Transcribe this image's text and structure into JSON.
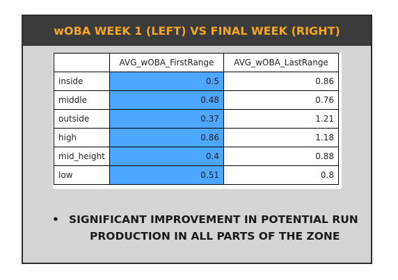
{
  "header": {
    "title": "wOBA WEEK 1 (LEFT) VS FINAL WEEK (RIGHT)"
  },
  "colors": {
    "header_bg": "#3b3b3b",
    "header_text": "#f5a623",
    "highlight": "#4da6ff",
    "panel_bg": "#d5d5d5"
  },
  "table": {
    "columns": [
      "",
      "AVG_wOBA_FirstRange",
      "AVG_wOBA_LastRange"
    ],
    "rows": [
      {
        "label": "inside",
        "first": "0.5",
        "last": "0.86"
      },
      {
        "label": "middle",
        "first": "0.48",
        "last": "0.76"
      },
      {
        "label": "outside",
        "first": "0.37",
        "last": "1.21"
      },
      {
        "label": "high",
        "first": "0.86",
        "last": "1.18"
      },
      {
        "label": "mid_height",
        "first": "0.4",
        "last": "0.88"
      },
      {
        "label": "low",
        "first": "0.51",
        "last": "0.8"
      }
    ]
  },
  "bullets": [
    {
      "marker": "•",
      "line1": "SIGNIFICANT IMPROVEMENT IN POTENTIAL RUN",
      "line2": "PRODUCTION IN ALL PARTS OF THE ZONE"
    }
  ]
}
